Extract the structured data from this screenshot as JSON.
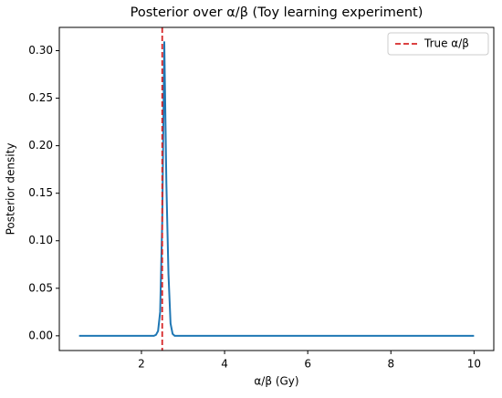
{
  "chart_data": {
    "type": "line",
    "title": "Posterior over α/β (Toy learning experiment)",
    "x_label": "α/β (Gy)",
    "y_label": "Posterior density",
    "x": [
      0.5,
      2.3,
      2.35,
      2.4,
      2.45,
      2.5,
      2.55,
      2.6,
      2.65,
      2.7,
      2.75,
      2.8,
      3.0,
      10
    ],
    "series": [
      {
        "name": "Posterior",
        "color": "#1f77b4",
        "values": [
          0,
          0,
          0.001,
          0.005,
          0.025,
          0.12,
          0.309,
          0.16,
          0.065,
          0.013,
          0.002,
          0,
          0,
          0
        ]
      }
    ],
    "reference_line": {
      "x": 2.5,
      "label": "True α/β",
      "color": "#d62728"
    },
    "xlim": [
      0.025,
      10.475
    ],
    "ylim": [
      -0.0155,
      0.3245
    ],
    "xticks": [
      2,
      4,
      6,
      8,
      10
    ],
    "yticks": [
      {
        "value": 0,
        "label": "0.00"
      },
      {
        "value": 0.05,
        "label": "0.05"
      },
      {
        "value": 0.1,
        "label": "0.10"
      },
      {
        "value": 0.15,
        "label": "0.15"
      },
      {
        "value": 0.2,
        "label": "0.20"
      },
      {
        "value": 0.25,
        "label": "0.25"
      },
      {
        "value": 0.3,
        "label": "0.30"
      }
    ],
    "legend": "upper right"
  }
}
